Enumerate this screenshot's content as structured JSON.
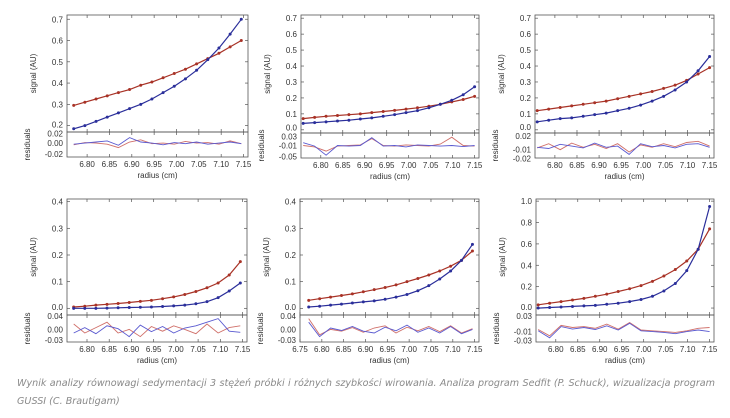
{
  "caption": "Wynik analizy równowagi sedymentacji 3 stężeń próbki i różnych szybkości wirowania. Analiza program Sedfit (P. Schuck), wizualizacja program GUSSI (C. Brautigam)",
  "colors": {
    "series_red": "#a83226",
    "series_blue": "#2a2e9a",
    "resid_red": "#d0706a",
    "resid_blue": "#5a5ad0"
  },
  "chart_data": [
    {
      "type": "scatter",
      "xlabel": "radius (cm)",
      "ylabel": "signal (AU)",
      "resid_label": "residuals",
      "xlim": [
        6.755,
        7.16
      ],
      "xticks": [
        "6.80",
        "6.85",
        "6.90",
        "6.95",
        "7.00",
        "7.05",
        "7.10",
        "7.15"
      ],
      "ylim": [
        0.17,
        0.72
      ],
      "yticks": [
        "0.2",
        "0.3",
        "0.4",
        "0.5",
        "0.6",
        "0.7"
      ],
      "rlim": [
        -0.025,
        0.02
      ],
      "rticks": [
        "0.02",
        "0.00",
        "-0.02"
      ],
      "x": [
        6.77,
        6.795,
        6.82,
        6.845,
        6.87,
        6.895,
        6.92,
        6.945,
        6.97,
        6.995,
        7.02,
        7.045,
        7.07,
        7.095,
        7.12,
        7.145
      ],
      "series": [
        {
          "color": "red",
          "values": [
            0.295,
            0.31,
            0.325,
            0.34,
            0.355,
            0.37,
            0.39,
            0.405,
            0.425,
            0.445,
            0.465,
            0.49,
            0.515,
            0.54,
            0.57,
            0.6
          ]
        },
        {
          "color": "blue",
          "values": [
            0.185,
            0.2,
            0.22,
            0.24,
            0.26,
            0.28,
            0.3,
            0.325,
            0.355,
            0.385,
            0.42,
            0.46,
            0.51,
            0.565,
            0.63,
            0.7
          ]
        }
      ],
      "residuals": [
        {
          "color": "red",
          "values": [
            -0.003,
            0.001,
            0.0,
            -0.002,
            -0.008,
            0.002,
            0.006,
            -0.001,
            0.0,
            -0.002,
            0.003,
            0.0,
            0.001,
            -0.002,
            0.004,
            -0.001
          ]
        },
        {
          "color": "blue",
          "values": [
            -0.002,
            0.0,
            0.002,
            0.004,
            -0.004,
            0.01,
            0.002,
            0.0,
            -0.003,
            0.001,
            -0.001,
            0.002,
            -0.002,
            0.0,
            0.002,
            -0.001
          ]
        }
      ]
    },
    {
      "type": "scatter",
      "xlabel": "radius (cm)",
      "ylabel": "signal (AU)",
      "resid_label": "residuals",
      "xlim": [
        6.755,
        7.16
      ],
      "xticks": [
        "6.80",
        "6.85",
        "6.90",
        "6.95",
        "7.00",
        "7.05",
        "7.10",
        "7.15"
      ],
      "ylim": [
        -0.02,
        0.72
      ],
      "yticks": [
        "0.0",
        "0.1",
        "0.2",
        "0.3",
        "0.4",
        "0.5",
        "0.6",
        "0.7"
      ],
      "rlim": [
        -0.055,
        0.035
      ],
      "rticks": [
        "0.03",
        "-0.01",
        "-0.05"
      ],
      "x": [
        6.76,
        6.786,
        6.812,
        6.838,
        6.864,
        6.89,
        6.916,
        6.942,
        6.968,
        6.994,
        7.02,
        7.046,
        7.072,
        7.098,
        7.124,
        7.15
      ],
      "series": [
        {
          "color": "red",
          "values": [
            0.07,
            0.078,
            0.085,
            0.09,
            0.095,
            0.1,
            0.108,
            0.115,
            0.122,
            0.13,
            0.138,
            0.148,
            0.16,
            0.175,
            0.19,
            0.21
          ]
        },
        {
          "color": "blue",
          "values": [
            0.04,
            0.045,
            0.05,
            0.055,
            0.06,
            0.068,
            0.075,
            0.085,
            0.095,
            0.108,
            0.12,
            0.138,
            0.16,
            0.185,
            0.22,
            0.27
          ]
        }
      ],
      "residuals": [
        {
          "color": "red",
          "values": [
            -0.01,
            -0.015,
            -0.03,
            -0.012,
            -0.01,
            -0.008,
            0.015,
            -0.01,
            -0.012,
            -0.008,
            -0.01,
            -0.012,
            -0.005,
            0.02,
            -0.01,
            -0.012
          ]
        },
        {
          "color": "blue",
          "values": [
            0.0,
            -0.012,
            -0.045,
            -0.01,
            -0.012,
            -0.01,
            0.018,
            -0.012,
            -0.01,
            -0.015,
            -0.008,
            -0.01,
            -0.012,
            -0.01,
            -0.014,
            -0.01
          ]
        }
      ]
    },
    {
      "type": "scatter",
      "xlabel": "radius (cm)",
      "ylabel": "signal (AU)",
      "resid_label": "residuals",
      "xlim": [
        6.755,
        7.16
      ],
      "xticks": [
        "6.80",
        "6.85",
        "6.90",
        "6.95",
        "7.00",
        "7.05",
        "7.10",
        "7.15"
      ],
      "ylim": [
        -0.02,
        0.72
      ],
      "yticks": [
        "0.0",
        "0.1",
        "0.2",
        "0.3",
        "0.4",
        "0.5",
        "0.6",
        "0.7"
      ],
      "rlim": [
        -0.022,
        0.02
      ],
      "rticks": [
        "0.02",
        "-0.01",
        "-0.02"
      ],
      "x": [
        6.76,
        6.786,
        6.812,
        6.838,
        6.864,
        6.89,
        6.916,
        6.942,
        6.968,
        6.994,
        7.02,
        7.046,
        7.072,
        7.098,
        7.124,
        7.15
      ],
      "series": [
        {
          "color": "red",
          "values": [
            0.12,
            0.13,
            0.14,
            0.15,
            0.16,
            0.17,
            0.18,
            0.195,
            0.21,
            0.225,
            0.24,
            0.26,
            0.28,
            0.31,
            0.35,
            0.39
          ]
        },
        {
          "color": "blue",
          "values": [
            0.05,
            0.06,
            0.07,
            0.075,
            0.085,
            0.095,
            0.105,
            0.12,
            0.135,
            0.155,
            0.18,
            0.21,
            0.25,
            0.3,
            0.37,
            0.46
          ]
        }
      ],
      "residuals": [
        {
          "color": "red",
          "values": [
            -0.005,
            0.002,
            -0.008,
            0.003,
            -0.004,
            0.001,
            -0.006,
            0.002,
            -0.012,
            0.0,
            -0.004,
            0.002,
            -0.003,
            0.004,
            0.006,
            -0.002
          ]
        },
        {
          "color": "blue",
          "values": [
            -0.004,
            -0.006,
            0.001,
            -0.002,
            -0.005,
            0.003,
            -0.004,
            -0.002,
            -0.016,
            0.002,
            -0.003,
            -0.001,
            -0.005,
            0.001,
            0.002,
            -0.004
          ]
        }
      ]
    },
    {
      "type": "scatter",
      "xlabel": "radius (cm)",
      "ylabel": "signal (AU)",
      "resid_label": "residuals",
      "xlim": [
        6.755,
        7.16
      ],
      "xticks": [
        "6.80",
        "6.85",
        "6.90",
        "6.95",
        "7.00",
        "7.05",
        "7.10",
        "7.15"
      ],
      "ylim": [
        -0.025,
        0.41
      ],
      "yticks": [
        "0.0",
        "0.1",
        "0.2",
        "0.3",
        "0.4"
      ],
      "rlim": [
        -0.035,
        0.04
      ],
      "rticks": [
        "0.04",
        "0.00",
        "-0.03"
      ],
      "x": [
        6.77,
        6.795,
        6.82,
        6.845,
        6.87,
        6.895,
        6.92,
        6.945,
        6.97,
        6.995,
        7.02,
        7.045,
        7.07,
        7.095,
        7.12,
        7.145
      ],
      "series": [
        {
          "color": "red",
          "values": [
            0.005,
            0.008,
            0.012,
            0.015,
            0.018,
            0.022,
            0.026,
            0.03,
            0.036,
            0.043,
            0.052,
            0.063,
            0.077,
            0.095,
            0.125,
            0.175
          ]
        },
        {
          "color": "blue",
          "values": [
            0.0,
            0.0,
            0.0,
            0.001,
            0.002,
            0.003,
            0.004,
            0.005,
            0.007,
            0.009,
            0.012,
            0.017,
            0.025,
            0.04,
            0.065,
            0.095
          ]
        }
      ],
      "residuals": [
        {
          "color": "red",
          "values": [
            0.015,
            -0.01,
            0.005,
            0.02,
            -0.01,
            0.0,
            -0.02,
            0.008,
            -0.005,
            0.01,
            0.0,
            -0.012,
            0.015,
            -0.01,
            0.005,
            0.01
          ]
        },
        {
          "color": "blue",
          "values": [
            -0.01,
            0.005,
            -0.012,
            0.01,
            0.002,
            -0.02,
            0.012,
            -0.006,
            0.008,
            -0.01,
            0.004,
            0.01,
            0.02,
            0.03,
            -0.005,
            -0.008
          ]
        }
      ]
    },
    {
      "type": "scatter",
      "xlabel": "radius (cm)",
      "ylabel": "signal (AU)",
      "resid_label": "residuals",
      "xlim": [
        6.75,
        7.16
      ],
      "xticks": [
        "6.75",
        "6.80",
        "6.85",
        "6.90",
        "6.95",
        "7.00",
        "7.05",
        "7.10",
        "7.15"
      ],
      "ylim": [
        -0.025,
        0.41
      ],
      "yticks": [
        "0.0",
        "0.1",
        "0.2",
        "0.3",
        "0.4"
      ],
      "rlim": [
        -0.035,
        0.04
      ],
      "rticks": [
        "0.04",
        "0.00",
        "-0.03"
      ],
      "x": [
        6.77,
        6.795,
        6.82,
        6.845,
        6.87,
        6.895,
        6.92,
        6.945,
        6.97,
        6.995,
        7.02,
        7.045,
        7.07,
        7.095,
        7.12,
        7.145
      ],
      "series": [
        {
          "color": "red",
          "values": [
            0.03,
            0.036,
            0.042,
            0.048,
            0.054,
            0.062,
            0.07,
            0.078,
            0.088,
            0.1,
            0.112,
            0.125,
            0.14,
            0.158,
            0.18,
            0.215
          ]
        },
        {
          "color": "blue",
          "values": [
            0.005,
            0.008,
            0.012,
            0.016,
            0.02,
            0.024,
            0.028,
            0.034,
            0.042,
            0.052,
            0.066,
            0.085,
            0.11,
            0.14,
            0.18,
            0.24
          ]
        }
      ],
      "residuals": [
        {
          "color": "red",
          "values": [
            0.03,
            -0.015,
            0.0,
            -0.005,
            0.005,
            -0.008,
            0.004,
            0.01,
            -0.01,
            0.006,
            -0.004,
            0.008,
            -0.006,
            0.01,
            -0.01,
            0.002
          ]
        },
        {
          "color": "blue",
          "values": [
            0.02,
            -0.02,
            0.004,
            -0.003,
            0.008,
            -0.005,
            -0.01,
            0.006,
            -0.004,
            0.012,
            -0.008,
            0.004,
            -0.01,
            0.008,
            -0.012,
            0.0
          ]
        }
      ]
    },
    {
      "type": "scatter",
      "xlabel": "radius (cm)",
      "ylabel": "signal (AU)",
      "resid_label": "residuals",
      "xlim": [
        6.755,
        7.16
      ],
      "xticks": [
        "6.80",
        "6.85",
        "6.90",
        "6.95",
        "7.00",
        "7.05",
        "7.10",
        "7.15"
      ],
      "ylim": [
        -0.065,
        1.02
      ],
      "yticks": [
        "0.0",
        "0.2",
        "0.4",
        "0.6",
        "0.8",
        "1.0"
      ],
      "rlim": [
        -0.035,
        0.03
      ],
      "rticks": [
        "0.03",
        "-0.01",
        "-0.03"
      ],
      "x": [
        6.76,
        6.786,
        6.812,
        6.838,
        6.864,
        6.89,
        6.916,
        6.942,
        6.968,
        6.994,
        7.02,
        7.046,
        7.072,
        7.098,
        7.124,
        7.15
      ],
      "series": [
        {
          "color": "red",
          "values": [
            0.03,
            0.045,
            0.06,
            0.075,
            0.09,
            0.11,
            0.13,
            0.155,
            0.18,
            0.21,
            0.25,
            0.3,
            0.36,
            0.44,
            0.55,
            0.74
          ]
        },
        {
          "color": "blue",
          "values": [
            0.0,
            0.005,
            0.01,
            0.015,
            0.02,
            0.025,
            0.035,
            0.045,
            0.06,
            0.08,
            0.11,
            0.16,
            0.23,
            0.35,
            0.55,
            0.95
          ]
        }
      ],
      "residuals": [
        {
          "color": "red",
          "values": [
            -0.005,
            -0.02,
            0.005,
            0.0,
            0.002,
            -0.002,
            0.008,
            -0.004,
            0.012,
            -0.006,
            -0.008,
            -0.01,
            -0.012,
            -0.008,
            -0.002,
            0.0
          ]
        },
        {
          "color": "blue",
          "values": [
            -0.008,
            -0.025,
            0.002,
            -0.004,
            0.0,
            -0.005,
            0.004,
            -0.006,
            0.01,
            -0.008,
            -0.01,
            -0.012,
            -0.015,
            -0.01,
            -0.006,
            -0.01
          ]
        }
      ]
    }
  ]
}
